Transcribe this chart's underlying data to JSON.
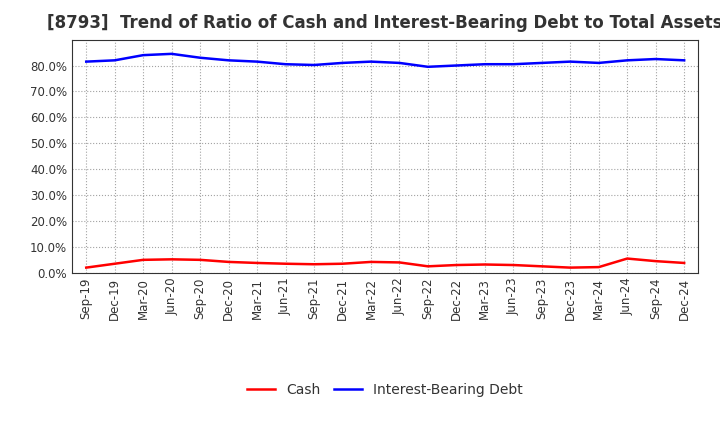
{
  "title": "[8793]  Trend of Ratio of Cash and Interest-Bearing Debt to Total Assets",
  "x_labels": [
    "Sep-19",
    "Dec-19",
    "Mar-20",
    "Jun-20",
    "Sep-20",
    "Dec-20",
    "Mar-21",
    "Jun-21",
    "Sep-21",
    "Dec-21",
    "Mar-22",
    "Jun-22",
    "Sep-22",
    "Dec-22",
    "Mar-23",
    "Jun-23",
    "Sep-23",
    "Dec-23",
    "Mar-24",
    "Jun-24",
    "Sep-24",
    "Dec-24"
  ],
  "cash": [
    2.0,
    3.5,
    5.0,
    5.2,
    5.0,
    4.2,
    3.8,
    3.5,
    3.3,
    3.5,
    4.2,
    4.0,
    2.5,
    3.0,
    3.2,
    3.0,
    2.5,
    2.0,
    2.2,
    5.5,
    4.5,
    3.8
  ],
  "interest_bearing_debt": [
    81.5,
    82.0,
    84.0,
    84.5,
    83.0,
    82.0,
    81.5,
    80.5,
    80.2,
    81.0,
    81.5,
    81.0,
    79.5,
    80.0,
    80.5,
    80.5,
    81.0,
    81.5,
    81.0,
    82.0,
    82.5,
    82.0
  ],
  "cash_color": "#FF0000",
  "debt_color": "#0000FF",
  "background_color": "#FFFFFF",
  "plot_bg_color": "#FFFFFF",
  "grid_color": "#999999",
  "ylim": [
    0,
    90
  ],
  "yticks": [
    0,
    10,
    20,
    30,
    40,
    50,
    60,
    70,
    80
  ],
  "legend_cash": "Cash",
  "legend_debt": "Interest-Bearing Debt",
  "title_fontsize": 12,
  "tick_fontsize": 8.5,
  "legend_fontsize": 10,
  "line_width": 1.8
}
